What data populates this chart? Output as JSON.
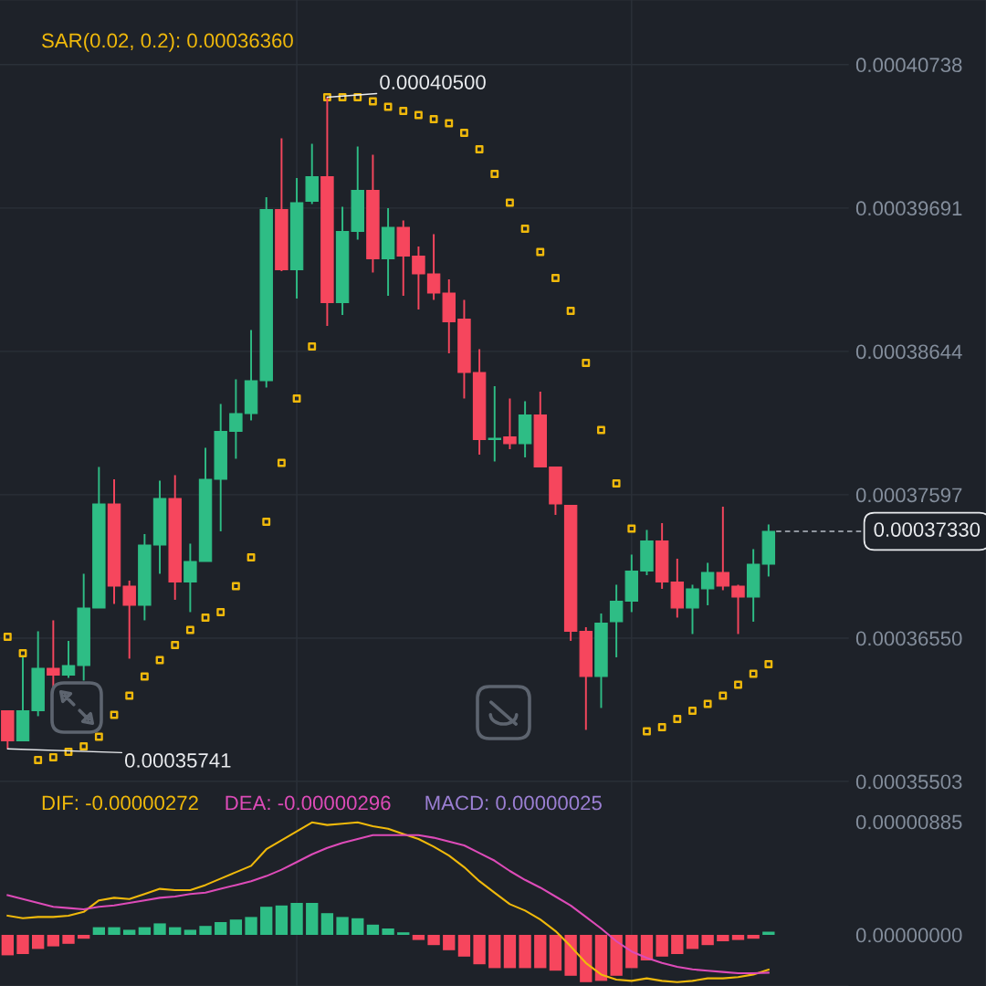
{
  "chart_data": [
    {
      "type": "candlestick",
      "categories": [
        null,
        null,
        null,
        null,
        null,
        null,
        null,
        null,
        null,
        null,
        null,
        null,
        null,
        null,
        null,
        null,
        null,
        null,
        null,
        null,
        null,
        null,
        null,
        null,
        null,
        null,
        null,
        null,
        null,
        null,
        null,
        null,
        null,
        null,
        null,
        null,
        null,
        null,
        null,
        null,
        null,
        null,
        null,
        null,
        null,
        null,
        null,
        null,
        null,
        null,
        null
      ],
      "ohlc": [
        [
          0.0003602,
          0.0003602,
          0.00035741,
          0.000358
        ],
        [
          0.000358,
          0.0003641,
          0.000358,
          0.0003602
        ],
        [
          0.0003602,
          0.000366,
          0.0003598,
          0.0003633
        ],
        [
          0.0003633,
          0.0003668,
          0.0003619,
          0.0003628
        ],
        [
          0.0003628,
          0.0003653,
          0.0003626,
          0.0003635
        ],
        [
          0.0003635,
          0.0003702,
          0.0003624,
          0.0003677
        ],
        [
          0.0003677,
          0.000378,
          0.0003677,
          0.0003753
        ],
        [
          0.0003753,
          0.0003771,
          0.000368,
          0.0003693
        ],
        [
          0.0003693,
          0.0003697,
          0.000364,
          0.0003679
        ],
        [
          0.0003679,
          0.0003731,
          0.0003668,
          0.0003723
        ],
        [
          0.0003723,
          0.000377,
          0.0003702,
          0.0003757
        ],
        [
          0.0003757,
          0.0003774,
          0.0003683,
          0.0003696
        ],
        [
          0.0003696,
          0.0003724,
          0.0003674,
          0.0003711
        ],
        [
          0.0003711,
          0.0003794,
          0.0003711,
          0.0003771
        ],
        [
          0.0003771,
          0.0003826,
          0.0003733,
          0.0003806
        ],
        [
          0.0003806,
          0.0003844,
          0.0003786,
          0.0003819
        ],
        [
          0.0003819,
          0.000388,
          0.0003814,
          0.0003843
        ],
        [
          0.0003843,
          0.0003977,
          0.0003838,
          0.0003968
        ],
        [
          0.0003968,
          0.000402,
          0.0003923,
          0.0003924
        ],
        [
          0.0003924,
          0.0003991,
          0.0003903,
          0.0003973
        ],
        [
          0.0003974,
          0.0004016,
          0.0003972,
          0.0003992
        ],
        [
          0.0003992,
          0.000405,
          0.0003883,
          0.00039
        ],
        [
          0.00039,
          0.000397,
          0.0003891,
          0.0003952
        ],
        [
          0.0003952,
          0.0004014,
          0.0003946,
          0.0003982
        ],
        [
          0.0003982,
          0.0004008,
          0.0003922,
          0.0003932
        ],
        [
          0.0003932,
          0.0003969,
          0.0003905,
          0.0003955
        ],
        [
          0.0003955,
          0.000396,
          0.0003905,
          0.0003934
        ],
        [
          0.0003934,
          0.0003941,
          0.0003895,
          0.0003921
        ],
        [
          0.0003921,
          0.000395,
          0.0003902,
          0.0003907
        ],
        [
          0.0003907,
          0.0003917,
          0.0003863,
          0.0003886
        ],
        [
          0.0003888,
          0.0003902,
          0.000383,
          0.0003849
        ],
        [
          0.0003849,
          0.0003866,
          0.0003789,
          0.00038
        ],
        [
          0.00038,
          0.0003839,
          0.0003784,
          0.0003801
        ],
        [
          0.0003802,
          0.000383,
          0.0003793,
          0.0003797
        ],
        [
          0.0003797,
          0.0003828,
          0.0003787,
          0.0003818
        ],
        [
          0.0003818,
          0.0003835,
          0.000378,
          0.000378
        ],
        [
          0.000378,
          0.000378,
          0.0003745,
          0.0003753
        ],
        [
          0.0003752,
          0.0003752,
          0.0003653,
          0.000366
        ],
        [
          0.000366,
          0.0003663,
          0.0003588,
          0.0003627
        ],
        [
          0.0003627,
          0.0003673,
          0.0003604,
          0.0003666
        ],
        [
          0.0003667,
          0.0003694,
          0.0003641,
          0.0003682
        ],
        [
          0.0003682,
          0.0003716,
          0.0003674,
          0.0003704
        ],
        [
          0.0003704,
          0.0003734,
          0.0003701,
          0.0003726
        ],
        [
          0.0003726,
          0.0003739,
          0.0003691,
          0.0003696
        ],
        [
          0.0003696,
          0.0003713,
          0.000367,
          0.0003677
        ],
        [
          0.0003677,
          0.0003694,
          0.0003658,
          0.0003691
        ],
        [
          0.0003691,
          0.000371,
          0.0003679,
          0.0003703
        ],
        [
          0.0003703,
          0.0003751,
          0.000369,
          0.0003693
        ],
        [
          0.0003693,
          0.0003694,
          0.0003658,
          0.0003685
        ],
        [
          0.0003685,
          0.000372,
          0.0003667,
          0.0003709
        ],
        [
          0.0003709,
          0.0003738,
          0.00037,
          0.0003733
        ]
      ],
      "colors": [
        "#f6465d",
        "#2ebd85",
        "#2ebd85",
        "#f6465d",
        "#2ebd85",
        "#2ebd85",
        "#2ebd85",
        "#f6465d",
        "#f6465d",
        "#2ebd85",
        "#2ebd85",
        "#f6465d",
        "#2ebd85",
        "#2ebd85",
        "#2ebd85",
        "#2ebd85",
        "#2ebd85",
        "#2ebd85",
        "#f6465d",
        "#2ebd85",
        "#2ebd85",
        "#f6465d",
        "#2ebd85",
        "#2ebd85",
        "#f6465d",
        "#2ebd85",
        "#f6465d",
        "#f6465d",
        "#f6465d",
        "#f6465d",
        "#f6465d",
        "#f6465d",
        "#2ebd85",
        "#f6465d",
        "#2ebd85",
        "#f6465d",
        "#f6465d",
        "#f6465d",
        "#f6465d",
        "#2ebd85",
        "#2ebd85",
        "#2ebd85",
        "#2ebd85",
        "#f6465d",
        "#f6465d",
        "#2ebd85",
        "#2ebd85",
        "#f6465d",
        "#f6465d",
        "#2ebd85",
        "#2ebd85"
      ],
      "series": [
        {
          "name": "SAR(0.02, 0.2): 0.00036360",
          "type": "scatter",
          "marker": "square",
          "color": "#f0b90b",
          "values": [
            0.0003656,
            0.0003644,
            0.0003566,
            0.0003568,
            0.0003572,
            0.0003576,
            0.0003583,
            0.0003599,
            0.0003613,
            0.0003627,
            0.0003639,
            0.000365,
            0.0003661,
            0.000367,
            0.0003674,
            0.0003693,
            0.0003714,
            0.000374,
            0.0003783,
            0.000383,
            0.0003868,
            0.000405,
            0.000405,
            0.000405,
            0.0004047,
            0.0004043,
            0.000404,
            0.0004037,
            0.0004034,
            0.0004031,
            0.0004024,
            0.0004012,
            0.0003994,
            0.0003973,
            0.0003954,
            0.0003937,
            0.0003918,
            0.0003894,
            0.0003856,
            0.0003807,
            0.0003768,
            0.0003735,
            0.0003587,
            0.000359,
            0.0003596,
            0.0003602,
            0.0003607,
            0.0003613,
            0.0003621,
            0.0003629,
            0.0003636
          ]
        }
      ],
      "ylim": [
        0.00035503,
        0.0004121
      ],
      "yticks": [
        0.00040738,
        0.00039691,
        0.00038644,
        0.00037597,
        {
          "value": 0.0003655,
          "label": "0.00036550"
        },
        0.00035503
      ],
      "grid": "y",
      "tick_labels": "y",
      "annotations": [
        "0.00040500",
        "0.00035741"
      ],
      "ref_lines": [
        {
          "axis": "y",
          "value": 0.0003733,
          "label": "0.00037330",
          "line_style": "dashed",
          "color": "#b7bdc6"
        }
      ]
    },
    {
      "type": "bar",
      "categories": [
        null,
        null,
        null,
        null,
        null,
        null,
        null,
        null,
        null,
        null,
        null,
        null,
        null,
        null,
        null,
        null,
        null,
        null,
        null,
        null,
        null,
        null,
        null,
        null,
        null,
        null,
        null,
        null,
        null,
        null,
        null,
        null,
        null,
        null,
        null,
        null,
        null,
        null,
        null,
        null,
        null,
        null,
        null,
        null,
        null,
        null,
        null,
        null,
        null,
        null,
        null
      ],
      "series": [
        {
          "name": "DIF: -0.00000272",
          "type": "line",
          "color": "#f0b90b",
          "values": [
            1.5e-06,
            1.3e-06,
            1.4e-06,
            1.4e-06,
            1.5e-06,
            1.8e-06,
            2.7e-06,
            2.9e-06,
            2.8e-06,
            3.2e-06,
            3.6e-06,
            3.5e-06,
            3.5e-06,
            3.9e-06,
            4.4e-06,
            4.9e-06,
            5.4e-06,
            6.7e-06,
            7.4e-06,
            8.1e-06,
            8.8e-06,
            8.6e-06,
            8.7e-06,
            8.8e-06,
            8.5e-06,
            8.3e-06,
            7.9e-06,
            7.5e-06,
            6.9e-06,
            6.2e-06,
            5.3e-06,
            4.2e-06,
            3.3e-06,
            2.4e-06,
            1.9e-06,
            1.2e-06,
            3e-07,
            -9e-07,
            -2.2e-06,
            -3.1e-06,
            -3.5e-06,
            -3.6e-06,
            -3.4e-06,
            -3.6e-06,
            -3.7e-06,
            -3.6e-06,
            -3.4e-06,
            -3.4e-06,
            -3.3e-06,
            -3.1e-06,
            -2.72e-06
          ]
        },
        {
          "name": "DEA: -0.00000296",
          "type": "line",
          "color": "#dd4bb8",
          "values": [
            3.1e-06,
            2.8e-06,
            2.5e-06,
            2.2e-06,
            2.1e-06,
            2e-06,
            2.2e-06,
            2.3e-06,
            2.5e-06,
            2.7e-06,
            2.9e-06,
            3e-06,
            3.2e-06,
            3.3e-06,
            3.6e-06,
            3.9e-06,
            4.2e-06,
            4.6e-06,
            5.1e-06,
            5.7e-06,
            6.3e-06,
            6.8e-06,
            7.2e-06,
            7.5e-06,
            7.8e-06,
            7.8e-06,
            7.8e-06,
            7.8e-06,
            7.6e-06,
            7.3e-06,
            7e-06,
            6.4e-06,
            5.8e-06,
            5e-06,
            4.3e-06,
            3.7e-06,
            3e-06,
            2.3e-06,
            1.4e-06,
            5e-07,
            -5e-07,
            -1.3e-06,
            -1.8e-06,
            -2.2e-06,
            -2.5e-06,
            -2.7e-06,
            -2.8e-06,
            -2.9e-06,
            -3e-06,
            -3e-06,
            -2.96e-06
          ]
        },
        {
          "type": "bar",
          "colors": [
            "#f6465d",
            "#f6465d",
            "#f6465d",
            "#f6465d",
            "#f6465d",
            "#f6465d",
            "#2ebd85",
            "#2ebd85",
            "#2ebd85",
            "#2ebd85",
            "#2ebd85",
            "#2ebd85",
            "#2ebd85",
            "#2ebd85",
            "#2ebd85",
            "#2ebd85",
            "#2ebd85",
            "#2ebd85",
            "#2ebd85",
            "#2ebd85",
            "#2ebd85",
            "#2ebd85",
            "#2ebd85",
            "#2ebd85",
            "#2ebd85",
            "#2ebd85",
            "#2ebd85",
            "#f6465d",
            "#f6465d",
            "#f6465d",
            "#f6465d",
            "#f6465d",
            "#f6465d",
            "#f6465d",
            "#f6465d",
            "#f6465d",
            "#f6465d",
            "#f6465d",
            "#f6465d",
            "#f6465d",
            "#f6465d",
            "#f6465d",
            "#f6465d",
            "#f6465d",
            "#f6465d",
            "#f6465d",
            "#f6465d",
            "#f6465d",
            "#f6465d",
            "#f6465d",
            "#2ebd85"
          ],
          "values": [
            -1.6e-06,
            -1.5e-06,
            -1.1e-06,
            -9e-07,
            -7e-07,
            -3e-07,
            6e-07,
            6e-07,
            4e-07,
            6e-07,
            9e-07,
            6e-07,
            4e-07,
            7e-07,
            1e-06,
            1.2e-06,
            1.4e-06,
            2.2e-06,
            2.3e-06,
            2.5e-06,
            2.5e-06,
            1.7e-06,
            1.4e-06,
            1.3e-06,
            8e-07,
            5e-07,
            2e-07,
            -4e-07,
            -8e-07,
            -1.2e-06,
            -1.7e-06,
            -2.3e-06,
            -2.6e-06,
            -2.6e-06,
            -2.6e-06,
            -2.6e-06,
            -2.8e-06,
            -3.2e-06,
            -3.7e-06,
            -3.6e-06,
            -3.2e-06,
            -2.6e-06,
            -2e-06,
            -1.7e-06,
            -1.5e-06,
            -1.1e-06,
            -8e-07,
            -5e-07,
            -4e-07,
            -3e-07,
            2.5e-07
          ]
        }
      ],
      "ylim": [
        -4e-06,
        1.2e-05
      ],
      "yticks": [
        {
          "value": 8.85e-06,
          "label": "0.00000885"
        },
        {
          "value": 0,
          "label": "0.00000000"
        }
      ],
      "legend": "top left",
      "tick_labels": "y",
      "annotations": [
        "MACD: 0.00000025"
      ]
    }
  ]
}
